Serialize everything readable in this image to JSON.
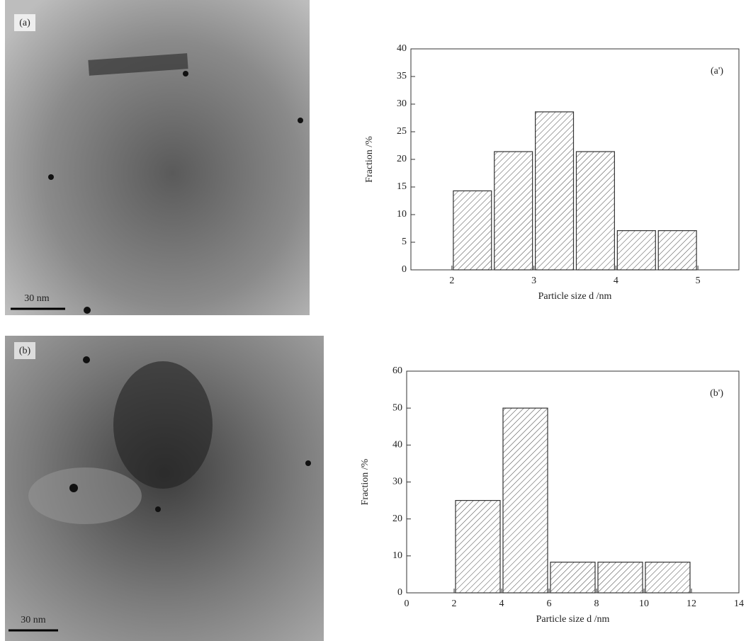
{
  "images": [
    {
      "label": "(a)",
      "scale_bar": "30 nm"
    },
    {
      "label": "(b)",
      "scale_bar": "30 nm"
    }
  ],
  "chart_data": [
    {
      "type": "histogram",
      "annotation": "(a')",
      "xlabel": "Particle size d /nm",
      "ylabel": "Fraction /%",
      "bins": [
        2,
        2.5,
        3,
        3.5,
        4,
        4.5,
        5
      ],
      "values": [
        14.3,
        21.4,
        28.6,
        21.4,
        7.1,
        7.1
      ],
      "xlim": [
        1.5,
        5.5
      ],
      "xticks": [
        2,
        3,
        4,
        5
      ],
      "ylim": [
        0,
        40
      ],
      "yticks": [
        0,
        5,
        10,
        15,
        20,
        25,
        30,
        35,
        40
      ],
      "color": "#333333"
    },
    {
      "type": "histogram",
      "annotation": "(b')",
      "xlabel": "Particle size d /nm",
      "ylabel": "Fraction /%",
      "bins": [
        2,
        4,
        6,
        8,
        10,
        12
      ],
      "values": [
        25,
        50,
        8.3,
        8.3,
        8.3
      ],
      "xlim": [
        0,
        14
      ],
      "xticks": [
        0,
        2,
        4,
        6,
        8,
        10,
        12,
        14
      ],
      "ylim": [
        0,
        60
      ],
      "yticks": [
        0,
        10,
        20,
        30,
        40,
        50,
        60
      ],
      "color": "#333333"
    }
  ]
}
